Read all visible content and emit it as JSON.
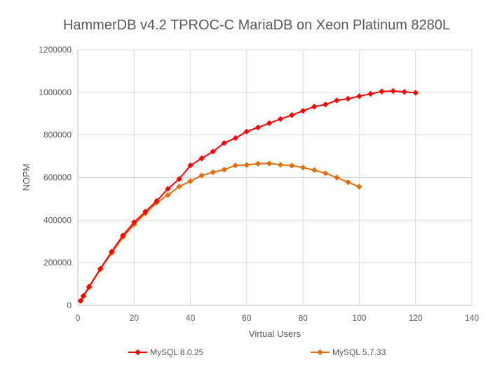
{
  "chart_data": {
    "type": "line",
    "title": "HammerDB v4.2 TPROC-C MariaDB on Xeon Platinum 8280L",
    "xlabel": "Virtual Users",
    "ylabel": "NOPM",
    "xlim": [
      0,
      140
    ],
    "ylim": [
      0,
      1200000
    ],
    "x_ticks": [
      "0",
      "20",
      "40",
      "60",
      "80",
      "100",
      "120",
      "140"
    ],
    "y_ticks": [
      "0",
      "200000",
      "400000",
      "600000",
      "800000",
      "1000000",
      "1200000"
    ],
    "grid": true,
    "legend_position": "bottom",
    "series": [
      {
        "name": "MySQL 8.0.25",
        "color": "#ff0000",
        "marker": "diamond",
        "x": [
          1,
          2,
          4,
          8,
          12,
          16,
          20,
          24,
          28,
          32,
          36,
          40,
          44,
          48,
          52,
          56,
          60,
          64,
          68,
          72,
          76,
          80,
          84,
          88,
          92,
          96,
          100,
          104,
          108,
          112,
          116,
          120
        ],
        "y": [
          22000,
          45000,
          88000,
          172000,
          252000,
          328000,
          390000,
          440000,
          490000,
          547000,
          593000,
          657000,
          690000,
          722000,
          762000,
          785000,
          816000,
          835000,
          855000,
          875000,
          893000,
          913000,
          933000,
          943000,
          962000,
          970000,
          982000,
          993000,
          1004000,
          1006000,
          1002000,
          998000
        ]
      },
      {
        "name": "MySQL 5.7.33",
        "color": "#e46c0a",
        "marker": "diamond",
        "x": [
          1,
          2,
          4,
          8,
          12,
          16,
          20,
          24,
          28,
          32,
          36,
          40,
          44,
          48,
          52,
          56,
          60,
          64,
          68,
          72,
          76,
          80,
          84,
          88,
          92,
          96,
          100
        ],
        "y": [
          20000,
          42000,
          85000,
          170000,
          246000,
          320000,
          380000,
          432000,
          482000,
          518000,
          558000,
          583000,
          610000,
          625000,
          637000,
          657000,
          659000,
          665000,
          666000,
          660000,
          656000,
          647000,
          635000,
          620000,
          600000,
          578000,
          557000
        ]
      }
    ]
  }
}
